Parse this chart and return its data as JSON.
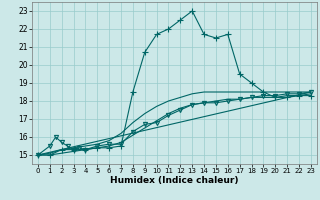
{
  "xlabel": "Humidex (Indice chaleur)",
  "xlim": [
    -0.5,
    23.5
  ],
  "ylim": [
    14.5,
    23.5
  ],
  "xticks": [
    0,
    1,
    2,
    3,
    4,
    5,
    6,
    7,
    8,
    9,
    10,
    11,
    12,
    13,
    14,
    15,
    16,
    17,
    18,
    19,
    20,
    21,
    22,
    23
  ],
  "yticks": [
    15,
    16,
    17,
    18,
    19,
    20,
    21,
    22,
    23
  ],
  "bg_color": "#cce8e8",
  "grid_color": "#99cccc",
  "line_color": "#006666",
  "curves": [
    {
      "x": [
        0,
        1,
        2,
        3,
        4,
        5,
        6,
        7,
        8,
        9,
        10,
        11,
        12,
        13,
        14,
        15,
        16,
        17,
        18,
        19,
        20,
        21,
        22,
        23
      ],
      "y": [
        15.0,
        15.0,
        15.3,
        15.3,
        15.3,
        15.4,
        15.4,
        15.5,
        18.5,
        20.7,
        21.7,
        22.0,
        22.5,
        23.0,
        21.7,
        21.5,
        21.7,
        19.5,
        19.0,
        18.5,
        18.2,
        18.2,
        18.3,
        18.3
      ],
      "marker": "+",
      "markersize": 4,
      "lw": 0.8
    },
    {
      "x": [
        0,
        1,
        2,
        3,
        4,
        5,
        6,
        7,
        8,
        9,
        10,
        11,
        12,
        13,
        14,
        15,
        16,
        17,
        18,
        19,
        20,
        21,
        22,
        23
      ],
      "y": [
        15.0,
        15.1,
        15.3,
        15.4,
        15.5,
        15.6,
        15.8,
        16.2,
        16.8,
        17.3,
        17.7,
        18.0,
        18.2,
        18.4,
        18.5,
        18.5,
        18.5,
        18.5,
        18.5,
        18.5,
        18.5,
        18.5,
        18.5,
        18.5
      ],
      "marker": null,
      "markersize": 0,
      "lw": 0.8
    },
    {
      "x": [
        0,
        1,
        2,
        3,
        4,
        5,
        6,
        7,
        8,
        9,
        10,
        11,
        12,
        13,
        14,
        15,
        16,
        17,
        18,
        19,
        20,
        21,
        22,
        23
      ],
      "y": [
        15.0,
        15.0,
        15.1,
        15.2,
        15.3,
        15.4,
        15.5,
        15.7,
        16.1,
        16.5,
        16.9,
        17.3,
        17.6,
        17.8,
        17.9,
        18.0,
        18.1,
        18.1,
        18.2,
        18.2,
        18.2,
        18.3,
        18.3,
        18.4
      ],
      "marker": null,
      "markersize": 0,
      "lw": 0.8
    },
    {
      "x": [
        0,
        1,
        1.5,
        2,
        2.5,
        3,
        3.5,
        4,
        5,
        6,
        7,
        8,
        9,
        10,
        11,
        12,
        13,
        14,
        15,
        16,
        17,
        18,
        19,
        20,
        21,
        22,
        23
      ],
      "y": [
        15.0,
        15.5,
        16.0,
        15.7,
        15.5,
        15.3,
        15.4,
        15.3,
        15.5,
        15.6,
        15.6,
        16.3,
        16.7,
        16.8,
        17.2,
        17.5,
        17.8,
        17.9,
        17.9,
        18.0,
        18.1,
        18.2,
        18.3,
        18.3,
        18.4,
        18.4,
        18.5
      ],
      "marker": "v",
      "markersize": 3,
      "lw": 0.8
    },
    {
      "x": [
        0,
        23
      ],
      "y": [
        15.0,
        18.5
      ],
      "marker": null,
      "markersize": 0,
      "lw": 0.8
    }
  ]
}
